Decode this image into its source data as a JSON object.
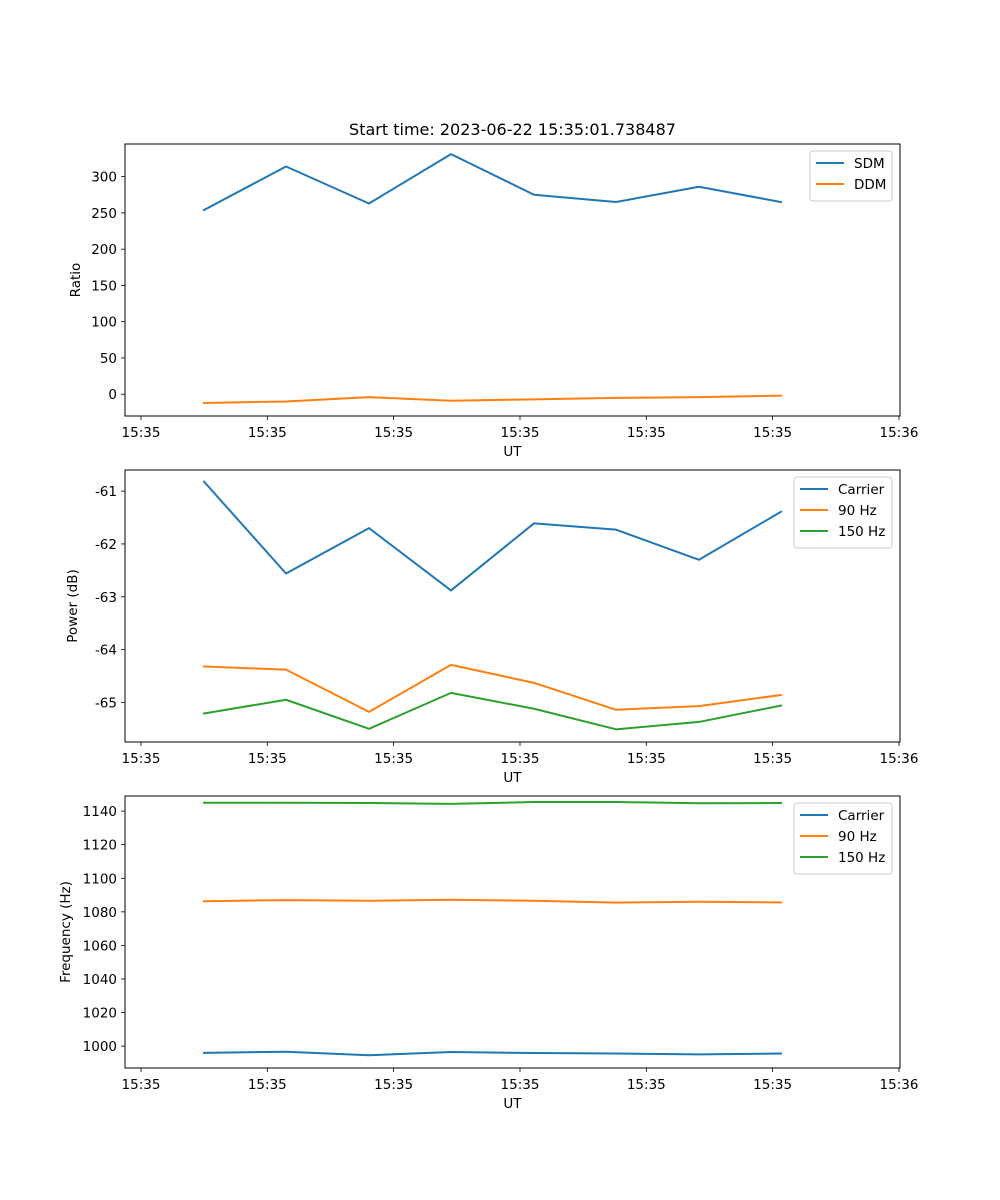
{
  "chart_data": [
    {
      "type": "line",
      "title": "Start time: 2023-06-22 15:35:01.738487",
      "xlabel": "UT",
      "ylabel": "Ratio",
      "x_tick_labels": [
        "15:35",
        "15:35",
        "15:35",
        "15:35",
        "15:35",
        "15:35",
        "15:35",
        "15:36"
      ],
      "y_ticks": [
        0,
        50,
        100,
        150,
        200,
        250,
        300
      ],
      "ylim": [
        -30,
        345
      ],
      "legend_position": "upper right",
      "series": [
        {
          "name": "SDM",
          "color": "#1f77b4",
          "values": [
            254,
            314,
            263,
            331,
            275,
            265,
            286,
            265
          ]
        },
        {
          "name": "DDM",
          "color": "#ff7f0e",
          "values": [
            -12,
            -10,
            -4,
            -9,
            -7,
            -5,
            -4,
            -2
          ]
        }
      ]
    },
    {
      "type": "line",
      "title": "",
      "xlabel": "UT",
      "ylabel": "Power (dB)",
      "x_tick_labels": [
        "15:35",
        "15:35",
        "15:35",
        "15:35",
        "15:35",
        "15:35",
        "15:35",
        "15:36"
      ],
      "y_ticks": [
        -65,
        -64,
        -63,
        -62,
        -61
      ],
      "ylim": [
        -65.75,
        -60.6
      ],
      "legend_position": "upper right",
      "series": [
        {
          "name": "Carrier",
          "color": "#1f77b4",
          "values": [
            -60.82,
            -62.56,
            -61.7,
            -62.88,
            -61.61,
            -61.73,
            -62.3,
            -61.39
          ]
        },
        {
          "name": "90 Hz",
          "color": "#ff7f0e",
          "values": [
            -64.32,
            -64.38,
            -65.18,
            -64.29,
            -64.63,
            -65.14,
            -65.07,
            -64.86
          ]
        },
        {
          "name": "150 Hz",
          "color": "#2ca02c",
          "values": [
            -65.21,
            -64.95,
            -65.5,
            -64.82,
            -65.12,
            -65.51,
            -65.37,
            -65.06
          ]
        }
      ]
    },
    {
      "type": "line",
      "title": "",
      "xlabel": "UT",
      "ylabel": "Frequency (Hz)",
      "x_tick_labels": [
        "15:35",
        "15:35",
        "15:35",
        "15:35",
        "15:35",
        "15:35",
        "15:35",
        "15:36"
      ],
      "y_ticks": [
        1000,
        1020,
        1040,
        1060,
        1080,
        1100,
        1120,
        1140
      ],
      "ylim": [
        987,
        1149
      ],
      "legend_position": "upper right",
      "series": [
        {
          "name": "Carrier",
          "color": "#1f77b4",
          "values": [
            996,
            996.7,
            994.6,
            996.5,
            995.9,
            995.6,
            995.1,
            995.6
          ]
        },
        {
          "name": "90 Hz",
          "color": "#ff7f0e",
          "values": [
            1086.3,
            1087,
            1086.6,
            1087.2,
            1086.6,
            1085.5,
            1086,
            1085.6
          ]
        },
        {
          "name": "150 Hz",
          "color": "#2ca02c",
          "values": [
            1145,
            1145,
            1144.8,
            1144.3,
            1145.4,
            1145.4,
            1144.7,
            1144.8
          ]
        }
      ]
    }
  ]
}
